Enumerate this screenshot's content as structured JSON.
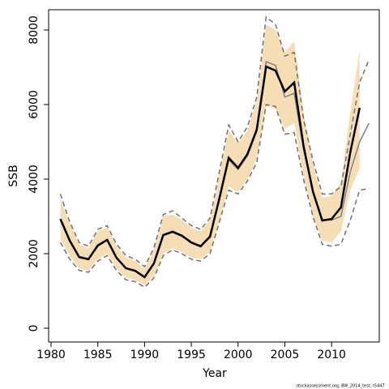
{
  "chart_data": {
    "type": "line",
    "x_label": "Year",
    "y_label": "SSB",
    "footnote": "stockassessment.org, BW_2014_test, r5447",
    "xlim": [
      1979.74,
      2015.1
    ],
    "ylim": [
      -370,
      8543
    ],
    "xticks": [
      1980,
      1985,
      1990,
      1995,
      2000,
      2005,
      2010
    ],
    "yticks": [
      0,
      2000,
      4000,
      6000,
      8000
    ],
    "band": {
      "color": "#f5deb3",
      "x": [
        1981,
        1982,
        1983,
        1984,
        1985,
        1986,
        1987,
        1988,
        1989,
        1990,
        1991,
        1992,
        1993,
        1994,
        1995,
        1996,
        1997,
        1998,
        1999,
        2000,
        2001,
        2002,
        2003,
        2004,
        2005,
        2006,
        2007,
        2008,
        2009,
        2010,
        2011,
        2012,
        2013
      ],
      "upper": [
        3500,
        2800,
        2250,
        2150,
        2600,
        2700,
        2200,
        1900,
        1800,
        1600,
        2100,
        3000,
        3050,
        2900,
        2700,
        2600,
        2900,
        4100,
        5300,
        4950,
        5300,
        6100,
        8150,
        8000,
        7400,
        7700,
        5800,
        4400,
        3500,
        3550,
        3900,
        5800,
        7450
      ],
      "lower": [
        2400,
        1950,
        1600,
        1550,
        1850,
        2000,
        1600,
        1350,
        1300,
        1150,
        1400,
        2000,
        2150,
        2050,
        1900,
        1850,
        2050,
        2900,
        3800,
        3650,
        4000,
        4550,
        5950,
        5900,
        5350,
        5500,
        4100,
        3000,
        2350,
        2300,
        2600,
        3700,
        4300
      ]
    },
    "series": [
      {
        "color": "#808080",
        "style": "solid",
        "width": 1.5,
        "x": [
          1981,
          1982,
          1983,
          1984,
          1985,
          1986,
          1987,
          1988,
          1989,
          1990,
          1991,
          1992,
          1993,
          1994,
          1995,
          1996,
          1997,
          1998,
          1999,
          2000,
          2001,
          2002,
          2003,
          2004,
          2005,
          2006,
          2007,
          2008,
          2009,
          2010,
          2011,
          2012,
          2013,
          2014
        ],
        "values": [
          2900,
          2330,
          1890,
          1840,
          2200,
          2350,
          1880,
          1600,
          1530,
          1360,
          1730,
          2480,
          2570,
          2460,
          2280,
          2180,
          2440,
          3450,
          4520,
          4260,
          4620,
          5280,
          7150,
          7050,
          6200,
          6300,
          4800,
          3650,
          2900,
          2900,
          3000,
          4200,
          5000,
          5500
        ]
      },
      {
        "color": "#707070",
        "style": "dashed",
        "width": 1.5,
        "x": [
          1981,
          1982,
          1983,
          1984,
          1985,
          1986,
          1987,
          1988,
          1989,
          1990,
          1991,
          1992,
          1993,
          1994,
          1995,
          1996,
          1997,
          1998,
          1999,
          2000,
          2001,
          2002,
          2003,
          2004,
          2005,
          2006,
          2007,
          2008,
          2009,
          2010,
          2011,
          2012,
          2013,
          2014
        ],
        "values": [
          3600,
          2850,
          2300,
          2200,
          2650,
          2750,
          2250,
          1950,
          1850,
          1650,
          2150,
          3050,
          3150,
          2950,
          2750,
          2650,
          2950,
          4200,
          5450,
          5000,
          5400,
          6200,
          8350,
          8150,
          7300,
          7400,
          5600,
          4500,
          3600,
          3600,
          3800,
          5200,
          6600,
          7200
        ]
      },
      {
        "color": "#707070",
        "style": "dashed",
        "width": 1.5,
        "x": [
          1981,
          1982,
          1983,
          1984,
          1985,
          1986,
          1987,
          1988,
          1989,
          1990,
          1991,
          1992,
          1993,
          1994,
          1995,
          1996,
          1997,
          1998,
          1999,
          2000,
          2001,
          2002,
          2003,
          2004,
          2005,
          2006,
          2007,
          2008,
          2009,
          2010,
          2011,
          2012,
          2013,
          2014
        ],
        "values": [
          2300,
          1850,
          1550,
          1500,
          1800,
          1950,
          1550,
          1300,
          1250,
          1100,
          1350,
          1950,
          2100,
          2000,
          1850,
          1800,
          2000,
          2850,
          3700,
          3600,
          3950,
          4450,
          6000,
          5950,
          5200,
          5250,
          4000,
          3000,
          2250,
          2200,
          2250,
          2900,
          3700,
          3750
        ]
      },
      {
        "color": "#000000",
        "style": "solid",
        "width": 2.5,
        "x": [
          1981,
          1982,
          1983,
          1984,
          1985,
          1986,
          1987,
          1988,
          1989,
          1990,
          1991,
          1992,
          1993,
          1994,
          1995,
          1996,
          1997,
          1998,
          1999,
          2000,
          2001,
          2002,
          2003,
          2004,
          2005,
          2006,
          2007,
          2008,
          2009,
          2010,
          2011,
          2012,
          2013
        ],
        "values": [
          2930,
          2350,
          1910,
          1850,
          2220,
          2370,
          1890,
          1610,
          1540,
          1370,
          1740,
          2500,
          2590,
          2480,
          2300,
          2200,
          2460,
          3480,
          4570,
          4300,
          4670,
          5330,
          7020,
          6910,
          6350,
          6590,
          4890,
          3670,
          2890,
          2930,
          3240,
          4720,
          5910
        ]
      }
    ]
  }
}
